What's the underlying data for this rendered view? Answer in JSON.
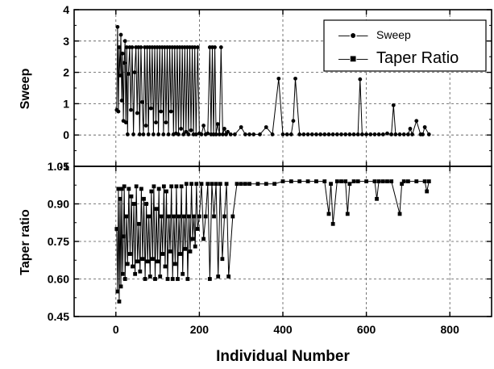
{
  "chart_data": [
    {
      "type": "line",
      "panel": "top",
      "ylabel": "Sweep",
      "xlabel": "",
      "xlim": [
        -100,
        900
      ],
      "ylim": [
        -1,
        4
      ],
      "xticks": [
        0,
        200,
        400,
        600,
        800
      ],
      "yticks": [
        -1,
        0,
        1,
        2,
        3,
        4
      ],
      "ytick_labels": [
        "-1",
        "0",
        "1",
        "2",
        "3",
        "4"
      ],
      "grid": true,
      "legend_position": "top-right",
      "series": [
        {
          "name": "Sweep",
          "marker": "circle",
          "x": [
            2,
            4,
            6,
            8,
            10,
            12,
            14,
            16,
            18,
            20,
            22,
            24,
            26,
            28,
            30,
            33,
            36,
            39,
            42,
            45,
            48,
            51,
            54,
            57,
            60,
            63,
            66,
            69,
            72,
            75,
            78,
            81,
            84,
            87,
            90,
            93,
            96,
            99,
            102,
            105,
            108,
            111,
            114,
            117,
            120,
            123,
            126,
            129,
            132,
            135,
            138,
            141,
            144,
            147,
            150,
            153,
            156,
            159,
            162,
            165,
            168,
            171,
            174,
            177,
            180,
            183,
            186,
            189,
            192,
            196,
            200,
            205,
            210,
            215,
            220,
            225,
            228,
            231,
            234,
            237,
            240,
            244,
            248,
            252,
            256,
            260,
            264,
            268,
            275,
            285,
            300,
            310,
            320,
            330,
            345,
            360,
            375,
            390,
            400,
            410,
            420,
            425,
            430,
            440,
            450,
            460,
            470,
            480,
            490,
            500,
            510,
            520,
            530,
            540,
            550,
            560,
            570,
            580,
            585,
            590,
            600,
            610,
            620,
            630,
            640,
            650,
            660,
            665,
            670,
            680,
            690,
            700,
            705,
            710,
            720,
            730,
            735,
            740,
            750
          ],
          "values": [
            0.8,
            3.45,
            0.75,
            2.8,
            1.9,
            3.2,
            1.1,
            2.6,
            0.45,
            2.3,
            3.0,
            0.4,
            2.8,
            0.02,
            1.95,
            2.8,
            0.8,
            2.8,
            0.02,
            2.0,
            2.8,
            0.7,
            2.8,
            0.02,
            2.8,
            1.05,
            0.02,
            2.8,
            0.3,
            2.8,
            0.02,
            2.8,
            0.85,
            2.8,
            0.02,
            2.8,
            0.4,
            2.8,
            0.02,
            2.8,
            0.75,
            2.8,
            0.02,
            2.8,
            0.4,
            2.8,
            0.02,
            2.8,
            0.75,
            2.8,
            0.02,
            2.8,
            0.05,
            2.8,
            0.02,
            2.8,
            0.2,
            2.8,
            0.02,
            2.8,
            0.1,
            2.8,
            0.02,
            2.8,
            0.15,
            2.8,
            0.02,
            2.8,
            0.02,
            2.8,
            0.05,
            0.02,
            0.3,
            0.02,
            0.05,
            2.8,
            0.02,
            2.8,
            0.02,
            2.8,
            0.02,
            0.35,
            0.02,
            2.8,
            0.02,
            0.2,
            0.02,
            0.1,
            0.02,
            0.02,
            0.25,
            0.02,
            0.02,
            0.02,
            0.02,
            0.25,
            0.02,
            1.8,
            0.02,
            0.02,
            0.02,
            0.45,
            1.8,
            0.02,
            0.02,
            0.02,
            0.02,
            0.02,
            0.02,
            0.02,
            0.02,
            0.02,
            0.02,
            0.02,
            0.02,
            0.02,
            0.02,
            0.02,
            1.78,
            0.02,
            0.02,
            0.02,
            0.02,
            0.02,
            0.02,
            0.05,
            0.02,
            0.95,
            0.02,
            0.02,
            0.02,
            0.02,
            0.2,
            0.02,
            0.45,
            0.02,
            0.02,
            0.25,
            0.02
          ]
        }
      ]
    },
    {
      "type": "line",
      "panel": "bottom",
      "ylabel": "Taper ratio",
      "xlabel": "Individual Number",
      "xlim": [
        -100,
        900
      ],
      "ylim": [
        0.45,
        1.05
      ],
      "xticks": [
        0,
        200,
        400,
        600,
        800
      ],
      "xtick_labels": [
        "0",
        "200",
        "400",
        "600",
        "800"
      ],
      "yticks": [
        0.45,
        0.6,
        0.75,
        0.9,
        1.05
      ],
      "ytick_labels": [
        "0.45",
        "0.60",
        "0.75",
        "0.90",
        "1.05"
      ],
      "grid": true,
      "series": [
        {
          "name": "Taper Ratio",
          "marker": "square",
          "x": [
            2,
            4,
            6,
            8,
            10,
            12,
            14,
            16,
            18,
            20,
            22,
            25,
            28,
            31,
            34,
            37,
            40,
            43,
            46,
            49,
            52,
            55,
            58,
            61,
            64,
            67,
            70,
            73,
            76,
            79,
            82,
            85,
            88,
            91,
            94,
            97,
            100,
            103,
            106,
            109,
            112,
            115,
            118,
            121,
            124,
            127,
            130,
            133,
            136,
            139,
            142,
            145,
            148,
            151,
            154,
            157,
            160,
            163,
            166,
            169,
            172,
            175,
            178,
            181,
            184,
            187,
            190,
            193,
            196,
            200,
            205,
            210,
            215,
            220,
            225,
            230,
            235,
            240,
            245,
            250,
            255,
            260,
            265,
            270,
            280,
            290,
            300,
            310,
            320,
            340,
            360,
            380,
            400,
            420,
            440,
            460,
            480,
            500,
            510,
            515,
            520,
            530,
            540,
            550,
            555,
            560,
            570,
            580,
            600,
            620,
            625,
            630,
            640,
            650,
            660,
            680,
            685,
            690,
            700,
            720,
            740,
            745,
            750
          ],
          "values": [
            0.8,
            0.55,
            0.96,
            0.51,
            0.92,
            0.57,
            0.96,
            0.62,
            0.77,
            0.97,
            0.6,
            0.85,
            0.66,
            0.96,
            0.7,
            0.93,
            0.65,
            0.9,
            0.62,
            0.97,
            0.67,
            0.82,
            0.63,
            0.96,
            0.68,
            0.92,
            0.6,
            0.9,
            0.67,
            0.85,
            0.61,
            0.95,
            0.68,
            0.97,
            0.6,
            0.88,
            0.67,
            0.96,
            0.61,
            0.85,
            0.7,
            0.97,
            0.65,
            0.95,
            0.6,
            0.85,
            0.71,
            0.97,
            0.6,
            0.85,
            0.66,
            0.97,
            0.6,
            0.85,
            0.7,
            0.97,
            0.62,
            0.85,
            0.72,
            0.98,
            0.6,
            0.85,
            0.71,
            0.98,
            0.76,
            0.85,
            0.73,
            0.98,
            0.8,
            0.85,
            0.98,
            0.76,
            0.85,
            0.98,
            0.6,
            0.98,
            0.85,
            0.98,
            0.61,
            0.98,
            0.68,
            0.85,
            0.98,
            0.61,
            0.85,
            0.98,
            0.98,
            0.98,
            0.98,
            0.98,
            0.98,
            0.98,
            0.99,
            0.99,
            0.99,
            0.99,
            0.99,
            0.99,
            0.86,
            0.98,
            0.82,
            0.99,
            0.99,
            0.99,
            0.86,
            0.98,
            0.99,
            0.99,
            0.99,
            0.99,
            0.92,
            0.99,
            0.99,
            0.99,
            0.99,
            0.86,
            0.98,
            0.99,
            0.99,
            0.99,
            0.99,
            0.95,
            0.99
          ]
        }
      ]
    }
  ],
  "legend": {
    "sweep_glyph": "—●—",
    "sweep_label": "Sweep",
    "taper_glyph": "—■—",
    "taper_label": "Taper Ratio"
  }
}
